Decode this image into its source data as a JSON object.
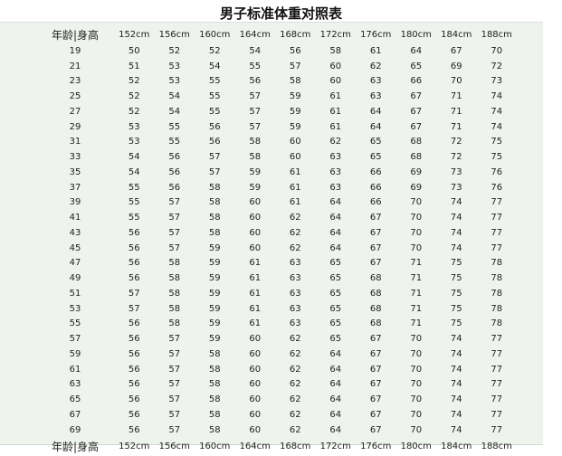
{
  "title": "男子标准体重对照表",
  "header": {
    "corner": "年龄|身高",
    "heights": [
      "152cm",
      "156cm",
      "160cm",
      "164cm",
      "168cm",
      "172cm",
      "176cm",
      "180cm",
      "184cm",
      "188cm"
    ]
  },
  "rows": [
    {
      "age": "19",
      "w": [
        "50",
        "52",
        "52",
        "54",
        "56",
        "58",
        "61",
        "64",
        "67",
        "70"
      ]
    },
    {
      "age": "21",
      "w": [
        "51",
        "53",
        "54",
        "55",
        "57",
        "60",
        "62",
        "65",
        "69",
        "72"
      ]
    },
    {
      "age": "23",
      "w": [
        "52",
        "53",
        "55",
        "56",
        "58",
        "60",
        "63",
        "66",
        "70",
        "73"
      ]
    },
    {
      "age": "25",
      "w": [
        "52",
        "54",
        "55",
        "57",
        "59",
        "61",
        "63",
        "67",
        "71",
        "74"
      ]
    },
    {
      "age": "27",
      "w": [
        "52",
        "54",
        "55",
        "57",
        "59",
        "61",
        "64",
        "67",
        "71",
        "74"
      ]
    },
    {
      "age": "29",
      "w": [
        "53",
        "55",
        "56",
        "57",
        "59",
        "61",
        "64",
        "67",
        "71",
        "74"
      ]
    },
    {
      "age": "31",
      "w": [
        "53",
        "55",
        "56",
        "58",
        "60",
        "62",
        "65",
        "68",
        "72",
        "75"
      ]
    },
    {
      "age": "33",
      "w": [
        "54",
        "56",
        "57",
        "58",
        "60",
        "63",
        "65",
        "68",
        "72",
        "75"
      ]
    },
    {
      "age": "35",
      "w": [
        "54",
        "56",
        "57",
        "59",
        "61",
        "63",
        "66",
        "69",
        "73",
        "76"
      ]
    },
    {
      "age": "37",
      "w": [
        "55",
        "56",
        "58",
        "59",
        "61",
        "63",
        "66",
        "69",
        "73",
        "76"
      ]
    },
    {
      "age": "39",
      "w": [
        "55",
        "57",
        "58",
        "60",
        "61",
        "64",
        "66",
        "70",
        "74",
        "77"
      ]
    },
    {
      "age": "41",
      "w": [
        "55",
        "57",
        "58",
        "60",
        "62",
        "64",
        "67",
        "70",
        "74",
        "77"
      ]
    },
    {
      "age": "43",
      "w": [
        "56",
        "57",
        "58",
        "60",
        "62",
        "64",
        "67",
        "70",
        "74",
        "77"
      ]
    },
    {
      "age": "45",
      "w": [
        "56",
        "57",
        "59",
        "60",
        "62",
        "64",
        "67",
        "70",
        "74",
        "77"
      ]
    },
    {
      "age": "47",
      "w": [
        "56",
        "58",
        "59",
        "61",
        "63",
        "65",
        "67",
        "71",
        "75",
        "78"
      ]
    },
    {
      "age": "49",
      "w": [
        "56",
        "58",
        "59",
        "61",
        "63",
        "65",
        "68",
        "71",
        "75",
        "78"
      ]
    },
    {
      "age": "51",
      "w": [
        "57",
        "58",
        "59",
        "61",
        "63",
        "65",
        "68",
        "71",
        "75",
        "78"
      ]
    },
    {
      "age": "53",
      "w": [
        "57",
        "58",
        "59",
        "61",
        "63",
        "65",
        "68",
        "71",
        "75",
        "78"
      ]
    },
    {
      "age": "55",
      "w": [
        "56",
        "58",
        "59",
        "61",
        "63",
        "65",
        "68",
        "71",
        "75",
        "78"
      ]
    },
    {
      "age": "57",
      "w": [
        "56",
        "57",
        "59",
        "60",
        "62",
        "65",
        "67",
        "70",
        "74",
        "77"
      ]
    },
    {
      "age": "59",
      "w": [
        "56",
        "57",
        "58",
        "60",
        "62",
        "64",
        "67",
        "70",
        "74",
        "77"
      ]
    },
    {
      "age": "61",
      "w": [
        "56",
        "57",
        "58",
        "60",
        "62",
        "64",
        "67",
        "70",
        "74",
        "77"
      ]
    },
    {
      "age": "63",
      "w": [
        "56",
        "57",
        "58",
        "60",
        "62",
        "64",
        "67",
        "70",
        "74",
        "77"
      ]
    },
    {
      "age": "65",
      "w": [
        "56",
        "57",
        "58",
        "60",
        "62",
        "64",
        "67",
        "70",
        "74",
        "77"
      ]
    },
    {
      "age": "67",
      "w": [
        "56",
        "57",
        "58",
        "60",
        "62",
        "64",
        "67",
        "70",
        "74",
        "77"
      ]
    },
    {
      "age": "69",
      "w": [
        "56",
        "57",
        "58",
        "60",
        "62",
        "64",
        "67",
        "70",
        "74",
        "77"
      ]
    }
  ]
}
